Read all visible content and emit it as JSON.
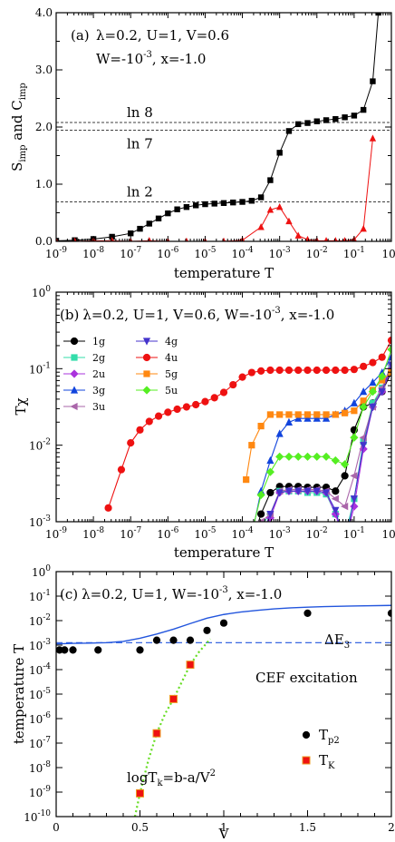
{
  "chart_data": [
    {
      "type": "line",
      "panel": "(a)",
      "params_line1": "λ=0.2, U=1, V=0.6",
      "params_line2": "W=-10",
      "params_line2_exp": "-3",
      "params_line2_tail": ", x=-1.0",
      "xlabel": "temperature T",
      "ylabel_S": "S",
      "ylabel_S_sub": "imp",
      "ylabel_and": " and C",
      "ylabel_C_sub": "imp",
      "x_scale": "log",
      "xlim_exp": [
        -9,
        0
      ],
      "ylim": [
        0,
        4.0
      ],
      "y_ticks": [
        "0.0",
        "1.0",
        "2.0",
        "3.0",
        "4.0"
      ],
      "ref_lines": [
        {
          "label": "ln 8",
          "value": 2.079
        },
        {
          "label": "ln 7",
          "value": 1.946
        },
        {
          "label": "ln 2",
          "value": 0.693
        }
      ],
      "series": [
        {
          "color": "#000000",
          "marker": "square",
          "log_x": [
            -9,
            -8.5,
            -8,
            -7.5,
            -7,
            -6.75,
            -6.5,
            -6.25,
            -6,
            -5.75,
            -5.5,
            -5.25,
            -5,
            -4.75,
            -4.5,
            -4.25,
            -4,
            -3.75,
            -3.5,
            -3.25,
            -3,
            -2.75,
            -2.5,
            -2.25,
            -2,
            -1.75,
            -1.5,
            -1.25,
            -1,
            -0.75,
            -0.5,
            -0.35
          ],
          "values": [
            0.01,
            0.02,
            0.04,
            0.08,
            0.14,
            0.22,
            0.31,
            0.4,
            0.49,
            0.56,
            0.6,
            0.63,
            0.65,
            0.66,
            0.67,
            0.68,
            0.69,
            0.71,
            0.77,
            1.07,
            1.55,
            1.93,
            2.05,
            2.07,
            2.1,
            2.12,
            2.14,
            2.17,
            2.2,
            2.3,
            2.8,
            4.0
          ]
        },
        {
          "color": "#ee1111",
          "marker": "triangle",
          "log_x": [
            -9,
            -8.5,
            -8,
            -7.5,
            -7,
            -6.5,
            -6,
            -5.5,
            -5,
            -4.5,
            -4,
            -3.5,
            -3.25,
            -3,
            -2.75,
            -2.5,
            -2.25,
            -2,
            -1.75,
            -1.5,
            -1.25,
            -1,
            -0.75,
            -0.5
          ],
          "values": [
            0.0,
            0.0,
            0.01,
            0.01,
            0.0,
            0.01,
            0.0,
            0.0,
            0.0,
            0.0,
            0.02,
            0.25,
            0.55,
            0.6,
            0.35,
            0.1,
            0.03,
            0.01,
            0.01,
            0.01,
            0.01,
            0.03,
            0.22,
            1.8
          ]
        }
      ]
    },
    {
      "type": "line",
      "panel": "(b)",
      "params": "λ=0.2, U=1, V=0.6, W=-10",
      "params_exp": "-3",
      "params_tail": ", x=-1.0",
      "xlabel": "temperature T",
      "ylabel": "Tχ",
      "x_scale": "log",
      "y_scale": "log",
      "xlim_exp": [
        -9,
        0
      ],
      "ylim_exp": [
        -3,
        0
      ],
      "series": [
        {
          "name": "1g",
          "color": "#000000",
          "marker": "circle",
          "log_x": [
            -3.7,
            -3.5,
            -3.25,
            -3,
            -2.75,
            -2.5,
            -2.25,
            -2,
            -1.75,
            -1.5,
            -1.25,
            -1,
            -0.75,
            -0.5,
            -0.25,
            0
          ],
          "log_y": [
            -3.2,
            -2.9,
            -2.62,
            -2.54,
            -2.54,
            -2.54,
            -2.55,
            -2.55,
            -2.55,
            -2.6,
            -2.4,
            -1.8,
            -1.5,
            -1.45,
            -1.3,
            -1.05
          ]
        },
        {
          "name": "2g",
          "color": "#33ddaa",
          "marker": "square",
          "log_x": [
            -3.7,
            -3.5,
            -3.25,
            -3,
            -2.75,
            -2.5,
            -2.25,
            -2,
            -1.75,
            -1.5,
            -1.25,
            -1,
            -0.75,
            -0.5,
            -0.25,
            0
          ],
          "log_y": [
            -3.5,
            -3.05,
            -2.9,
            -2.6,
            -2.6,
            -2.6,
            -2.62,
            -2.62,
            -2.64,
            -2.9,
            -3.2,
            -2.7,
            -1.95,
            -1.45,
            -1.25,
            -0.95
          ]
        },
        {
          "name": "2u",
          "color": "#aa33dd",
          "marker": "diamond",
          "log_x": [
            -3.7,
            -3.5,
            -3.25,
            -3,
            -2.75,
            -2.5,
            -2.25,
            -2,
            -1.75,
            -1.5,
            -1.25,
            -1,
            -0.75,
            -0.5,
            -0.25,
            0
          ],
          "log_y": [
            -3.5,
            -3.1,
            -2.95,
            -2.62,
            -2.6,
            -2.6,
            -2.6,
            -2.6,
            -2.62,
            -2.9,
            -3.3,
            -2.8,
            -2.05,
            -1.5,
            -1.3,
            -1.0
          ]
        },
        {
          "name": "3g",
          "color": "#1144dd",
          "marker": "triangle",
          "log_x": [
            -3.8,
            -3.5,
            -3.25,
            -3,
            -2.75,
            -2.5,
            -2.25,
            -2,
            -1.75,
            -1.5,
            -1.25,
            -1,
            -0.75,
            -0.5,
            -0.25,
            0
          ],
          "log_y": [
            -3.3,
            -2.6,
            -2.2,
            -1.85,
            -1.7,
            -1.65,
            -1.65,
            -1.65,
            -1.65,
            -1.6,
            -1.55,
            -1.45,
            -1.3,
            -1.18,
            -1.05,
            -0.85
          ]
        },
        {
          "name": "3u",
          "color": "#aa66aa",
          "marker": "triangle-left",
          "log_x": [
            -3.7,
            -3.5,
            -3.25,
            -3,
            -2.75,
            -2.5,
            -2.25,
            -2,
            -1.75,
            -1.5,
            -1.25,
            -1,
            -0.75,
            -0.5,
            -0.25,
            0
          ],
          "log_y": [
            -3.4,
            -3.0,
            -2.9,
            -2.6,
            -2.58,
            -2.58,
            -2.58,
            -2.58,
            -2.6,
            -2.7,
            -2.8,
            -2.4,
            -1.9,
            -1.5,
            -1.25,
            -0.95
          ]
        },
        {
          "name": "4g",
          "color": "#4433cc",
          "marker": "triangle-down",
          "log_x": [
            -3.7,
            -3.5,
            -3.25,
            -3,
            -2.75,
            -2.5,
            -2.25,
            -2,
            -1.75,
            -1.5,
            -1.25,
            -1,
            -0.75,
            -0.5,
            -0.25,
            0
          ],
          "log_y": [
            -3.6,
            -3.2,
            -2.9,
            -2.62,
            -2.6,
            -2.6,
            -2.6,
            -2.6,
            -2.62,
            -2.85,
            -3.3,
            -2.7,
            -2.0,
            -1.5,
            -1.3,
            -0.95
          ]
        },
        {
          "name": "4u",
          "color": "#ee1111",
          "marker": "circle",
          "log_x": [
            -7.6,
            -7.25,
            -7,
            -6.75,
            -6.5,
            -6.25,
            -6,
            -5.75,
            -5.5,
            -5.25,
            -5,
            -4.75,
            -4.5,
            -4.25,
            -4,
            -3.75,
            -3.5,
            -3.25,
            -3,
            -2.75,
            -2.5,
            -2.25,
            -2,
            -1.75,
            -1.5,
            -1.25,
            -1,
            -0.75,
            -0.5,
            -0.25,
            0
          ],
          "log_y": [
            -2.82,
            -2.32,
            -1.97,
            -1.8,
            -1.69,
            -1.62,
            -1.57,
            -1.53,
            -1.5,
            -1.47,
            -1.43,
            -1.38,
            -1.31,
            -1.21,
            -1.11,
            -1.05,
            -1.03,
            -1.02,
            -1.02,
            -1.02,
            -1.02,
            -1.02,
            -1.02,
            -1.02,
            -1.02,
            -1.02,
            -1.01,
            -0.97,
            -0.92,
            -0.85,
            -0.63
          ]
        },
        {
          "name": "5g",
          "color": "#ff8811",
          "marker": "square",
          "log_x": [
            -3.9,
            -3.75,
            -3.5,
            -3.25,
            -3,
            -2.75,
            -2.5,
            -2.25,
            -2,
            -1.75,
            -1.5,
            -1.25,
            -1,
            -0.75,
            -0.5,
            -0.25,
            0
          ],
          "log_y": [
            -2.45,
            -2.0,
            -1.75,
            -1.6,
            -1.6,
            -1.6,
            -1.6,
            -1.6,
            -1.6,
            -1.6,
            -1.6,
            -1.58,
            -1.55,
            -1.42,
            -1.28,
            -1.15,
            -1.05
          ]
        },
        {
          "name": "5u",
          "color": "#55ee22",
          "marker": "diamond",
          "log_x": [
            -3.7,
            -3.5,
            -3.25,
            -3,
            -2.75,
            -2.5,
            -2.25,
            -2,
            -1.75,
            -1.5,
            -1.25,
            -1,
            -0.75,
            -0.5,
            -0.25,
            0
          ],
          "log_y": [
            -3.05,
            -2.65,
            -2.35,
            -2.15,
            -2.15,
            -2.15,
            -2.15,
            -2.15,
            -2.15,
            -2.2,
            -2.25,
            -1.9,
            -1.5,
            -1.3,
            -1.1,
            -0.75
          ]
        }
      ]
    },
    {
      "type": "scatter",
      "panel": "(c)",
      "params": "λ=0.2, U=1, W=-10",
      "params_exp": "-3",
      "params_tail": ", x=-1.0",
      "xlabel": "V",
      "ylabel": "temperature T",
      "x_scale": "linear",
      "y_scale": "log",
      "xlim": [
        0,
        2
      ],
      "x_ticks": [
        "0",
        "0.5",
        "1",
        "1.5",
        "2"
      ],
      "ylim_exp": [
        -10,
        0
      ],
      "cef_value_exp": -2.9,
      "cef_label": "CEF excitation",
      "dE_label": "ΔE",
      "dE_sub": "3",
      "fit_label": "logT",
      "fit_sub": "k",
      "fit_tail": "=b-a/V",
      "fit_exp": "2",
      "legend": [
        {
          "name": "T",
          "sub": "p2",
          "color": "#000000",
          "marker": "circle"
        },
        {
          "name": "T",
          "sub": "K",
          "color": "#ee1111",
          "marker": "square"
        }
      ],
      "dE3_curve": {
        "x": [
          0,
          0.1,
          0.2,
          0.3,
          0.4,
          0.5,
          0.6,
          0.7,
          0.8,
          0.9,
          1.0,
          1.1,
          1.2,
          1.3,
          1.4,
          1.5,
          1.6,
          1.8,
          2.0
        ],
        "log_y": [
          -2.95,
          -2.93,
          -2.92,
          -2.9,
          -2.85,
          -2.72,
          -2.55,
          -2.35,
          -2.12,
          -1.9,
          -1.75,
          -1.65,
          -1.58,
          -1.52,
          -1.48,
          -1.45,
          -1.43,
          -1.4,
          -1.38
        ]
      },
      "Tp2": {
        "x": [
          0.02,
          0.05,
          0.1,
          0.25,
          0.5,
          0.6,
          0.7,
          0.8,
          0.9,
          1.0,
          1.5,
          2.0
        ],
        "log_y": [
          -3.2,
          -3.2,
          -3.2,
          -3.2,
          -3.2,
          -2.8,
          -2.8,
          -2.8,
          -2.4,
          -2.1,
          -1.7,
          -1.7
        ]
      },
      "TK": {
        "x": [
          0.5,
          0.6,
          0.7,
          0.8
        ],
        "log_y": [
          -9.05,
          -6.6,
          -5.2,
          -3.8
        ]
      },
      "fit_curve": {
        "x": [
          0.47,
          0.5,
          0.55,
          0.6,
          0.65,
          0.7,
          0.75,
          0.8,
          0.85,
          0.9,
          0.92
        ],
        "log_y": [
          -10,
          -9.05,
          -7.7,
          -6.6,
          -5.8,
          -5.2,
          -4.5,
          -3.8,
          -3.3,
          -2.9,
          -2.75
        ]
      }
    }
  ]
}
